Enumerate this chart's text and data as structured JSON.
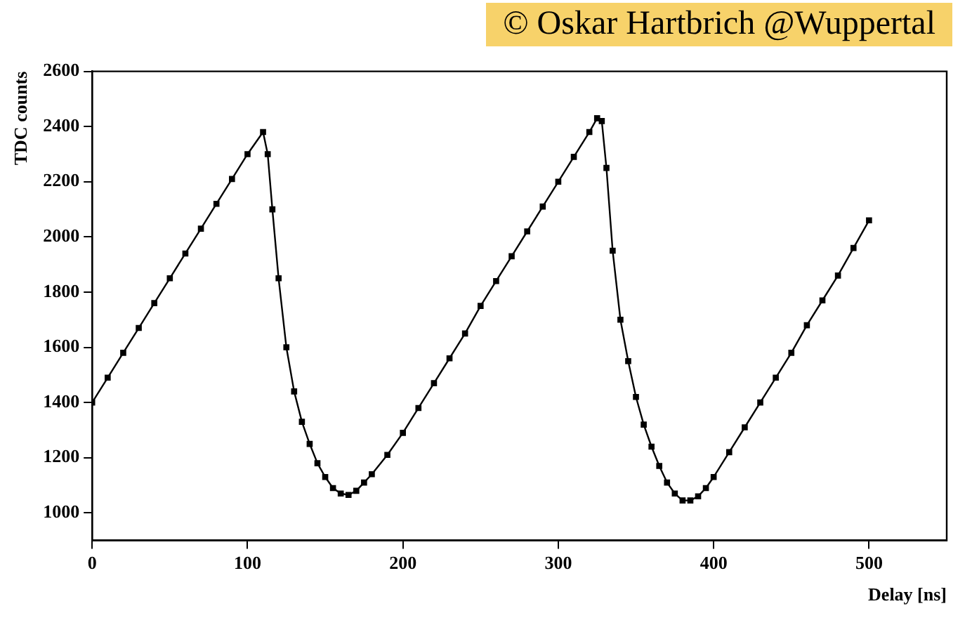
{
  "chart_data": {
    "type": "line",
    "xlabel": "Delay [ns]",
    "ylabel": "TDC counts",
    "annotations": [
      "© Oskar Hartbrich @Wuppertal"
    ],
    "xlim": [
      0,
      550
    ],
    "xticks": [
      0,
      100,
      200,
      300,
      400,
      500
    ],
    "ylim": [
      900,
      2600
    ],
    "yticks": [
      1000,
      1200,
      1400,
      1600,
      1800,
      2000,
      2200,
      2400,
      2600
    ],
    "grid": false,
    "legend": false,
    "marker": "square",
    "line_style": "solid",
    "series": [
      {
        "color": "#000000",
        "x": [
          0,
          10,
          20,
          30,
          40,
          50,
          60,
          70,
          80,
          90,
          100,
          110,
          113,
          116,
          120,
          125,
          130,
          135,
          140,
          145,
          150,
          155,
          160,
          165,
          170,
          175,
          180,
          190,
          200,
          210,
          220,
          230,
          240,
          250,
          260,
          270,
          280,
          290,
          300,
          310,
          320,
          325,
          328,
          331,
          335,
          340,
          345,
          350,
          355,
          360,
          365,
          370,
          375,
          380,
          385,
          390,
          395,
          400,
          410,
          420,
          430,
          440,
          450,
          460,
          470,
          480,
          490,
          500
        ],
        "values": [
          1400,
          1490,
          1580,
          1670,
          1760,
          1850,
          1940,
          2030,
          2120,
          2210,
          2300,
          2380,
          2300,
          2100,
          1850,
          1600,
          1440,
          1330,
          1250,
          1180,
          1130,
          1090,
          1070,
          1065,
          1080,
          1110,
          1140,
          1210,
          1290,
          1380,
          1470,
          1560,
          1650,
          1750,
          1840,
          1930,
          2020,
          2110,
          2200,
          2290,
          2380,
          2430,
          2420,
          2250,
          1950,
          1700,
          1550,
          1420,
          1320,
          1240,
          1170,
          1110,
          1070,
          1045,
          1045,
          1060,
          1090,
          1130,
          1220,
          1310,
          1400,
          1490,
          1580,
          1680,
          1770,
          1860,
          1960,
          2060
        ]
      }
    ]
  }
}
